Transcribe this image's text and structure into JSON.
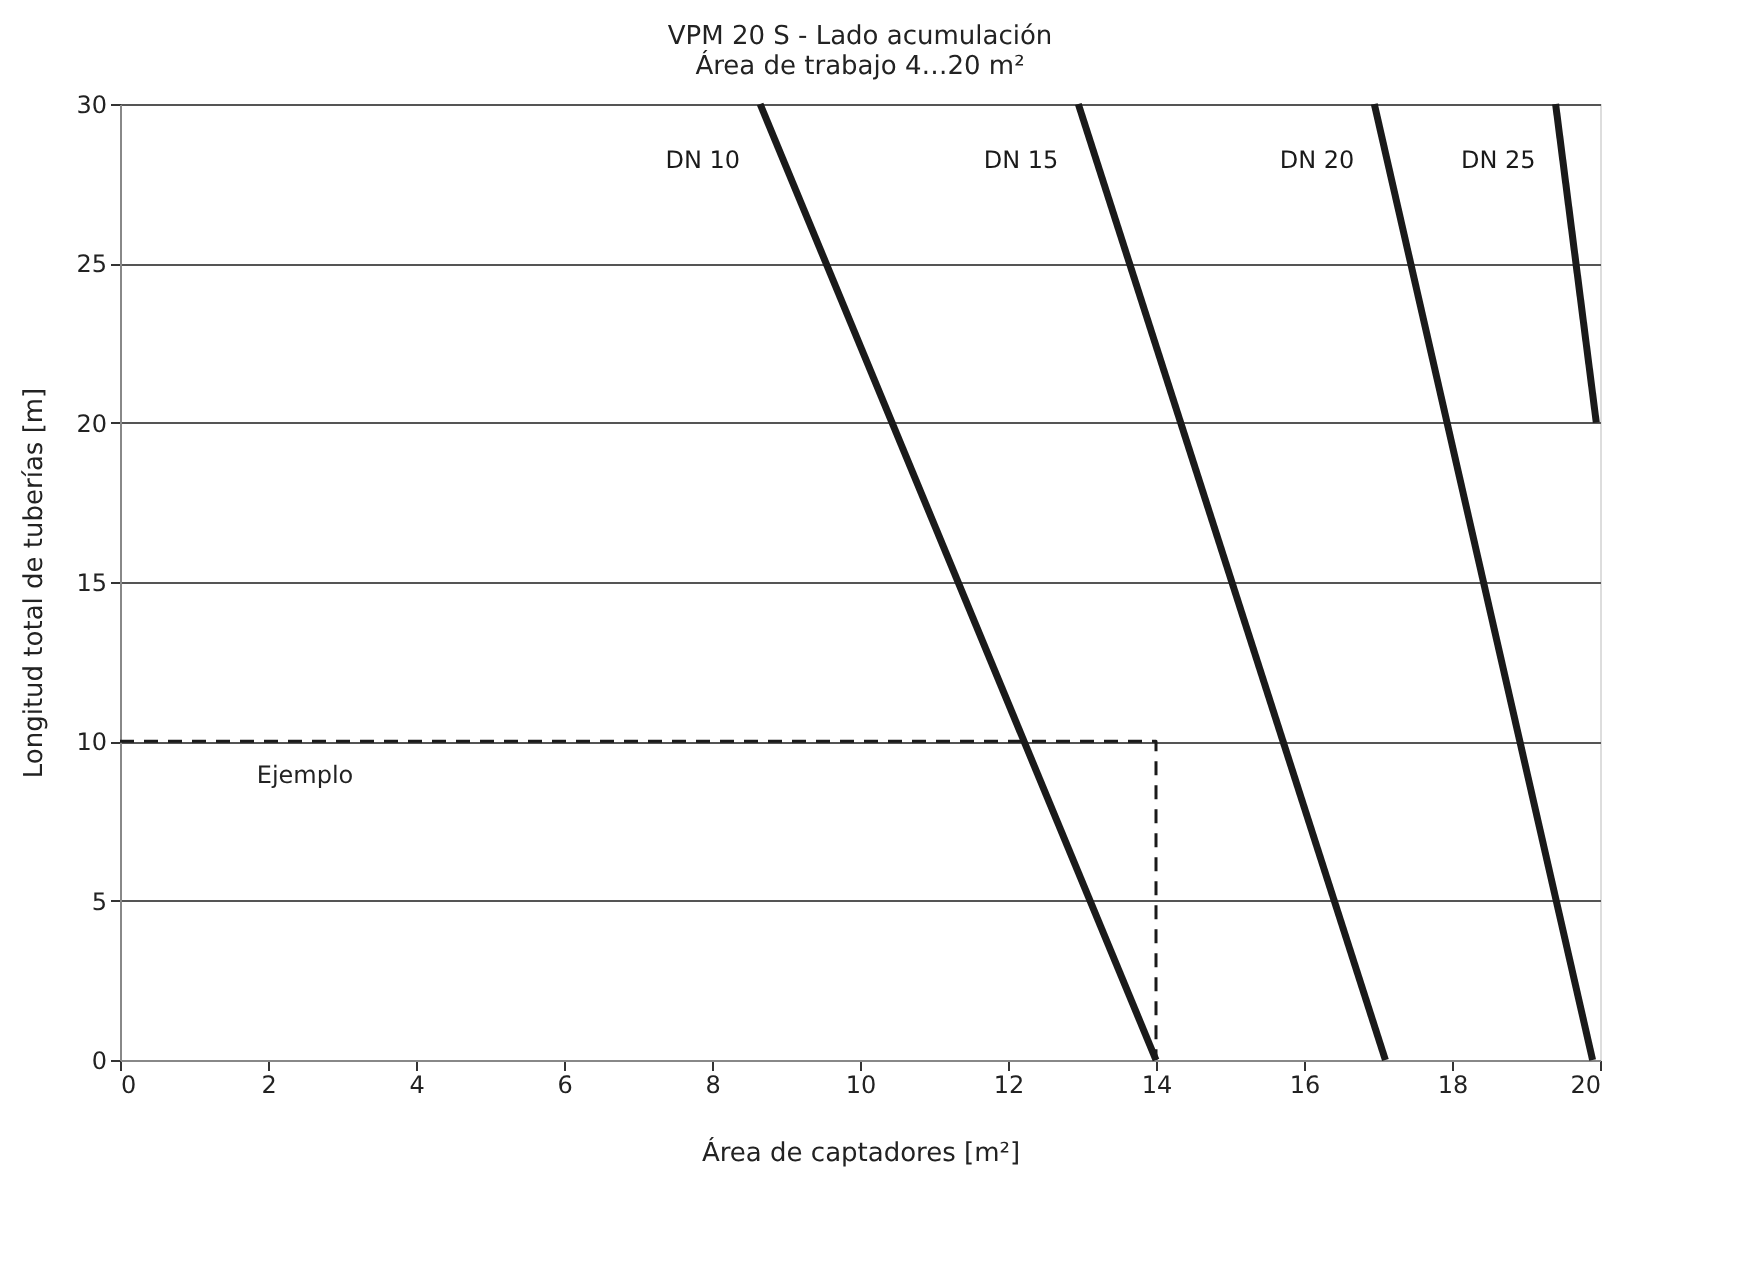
{
  "chart_data": {
    "type": "line",
    "title": "VPM 20 S - Lado acumulación",
    "subtitle": "Área de trabajo 4…20 m²",
    "xlabel": "Área de captadores [m²]",
    "ylabel": "Longitud total de tuberías [m]",
    "xlim": [
      0,
      20
    ],
    "xticks": [
      0,
      2,
      4,
      6,
      8,
      10,
      12,
      14,
      16,
      18,
      20
    ],
    "ylim": [
      0,
      30
    ],
    "yticks": [
      0,
      5,
      10,
      15,
      20,
      25,
      30
    ],
    "grid": "y",
    "marker": "none",
    "series": [
      {
        "name": "DN 10",
        "color": "#1a1a1a",
        "x": [
          8.65,
          14.0
        ],
        "values": [
          30,
          0
        ]
      },
      {
        "name": "DN 15",
        "color": "#1a1a1a",
        "x": [
          12.95,
          17.1
        ],
        "values": [
          30,
          0
        ]
      },
      {
        "name": "DN 20",
        "color": "#1a1a1a",
        "x": [
          16.95,
          19.9
        ],
        "values": [
          30,
          0
        ]
      },
      {
        "name": "DN 25",
        "color": "#1a1a1a",
        "x": [
          19.4,
          19.95
        ],
        "values": [
          30,
          20
        ]
      },
      {
        "color": "#1a1a1a",
        "x": [
          0,
          14,
          14
        ],
        "values": [
          10,
          10,
          0
        ],
        "line_style": "dashed"
      }
    ],
    "annotations": [
      {
        "text": "Ejemplo",
        "x": 2.5,
        "y": 10
      }
    ]
  }
}
